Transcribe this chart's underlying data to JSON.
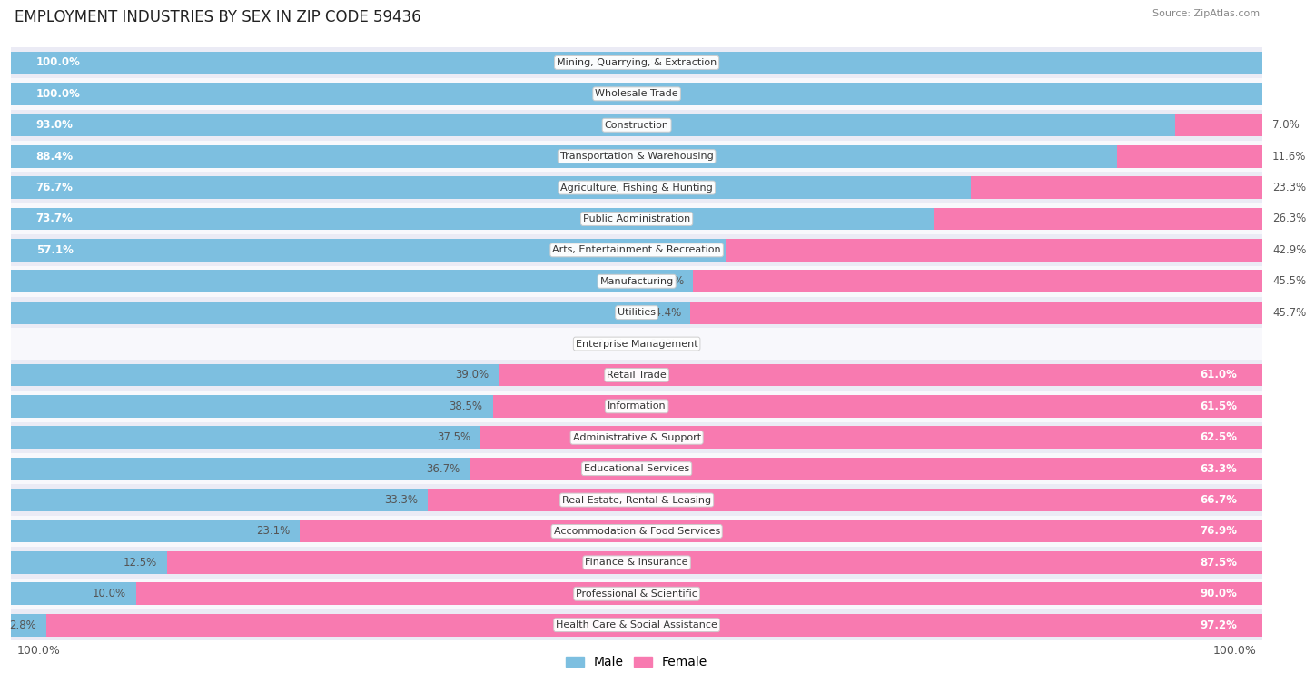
{
  "title": "EMPLOYMENT INDUSTRIES BY SEX IN ZIP CODE 59436",
  "source": "Source: ZipAtlas.com",
  "categories": [
    "Mining, Quarrying, & Extraction",
    "Wholesale Trade",
    "Construction",
    "Transportation & Warehousing",
    "Agriculture, Fishing & Hunting",
    "Public Administration",
    "Arts, Entertainment & Recreation",
    "Manufacturing",
    "Utilities",
    "Enterprise Management",
    "Retail Trade",
    "Information",
    "Administrative & Support",
    "Educational Services",
    "Real Estate, Rental & Leasing",
    "Accommodation & Food Services",
    "Finance & Insurance",
    "Professional & Scientific",
    "Health Care & Social Assistance"
  ],
  "male": [
    100.0,
    100.0,
    93.0,
    88.4,
    76.7,
    73.7,
    57.1,
    54.6,
    54.4,
    0.0,
    39.0,
    38.5,
    37.5,
    36.7,
    33.3,
    23.1,
    12.5,
    10.0,
    2.8
  ],
  "female": [
    0.0,
    0.0,
    7.0,
    11.6,
    23.3,
    26.3,
    42.9,
    45.5,
    45.7,
    0.0,
    61.0,
    61.5,
    62.5,
    63.3,
    66.7,
    76.9,
    87.5,
    90.0,
    97.2
  ],
  "male_color": "#7dbfe0",
  "female_color": "#f87ab0",
  "row_color_even": "#ebebf5",
  "row_color_odd": "#f8f8fc",
  "title_fontsize": 12,
  "bar_height": 0.72,
  "xlim": [
    0,
    100
  ]
}
